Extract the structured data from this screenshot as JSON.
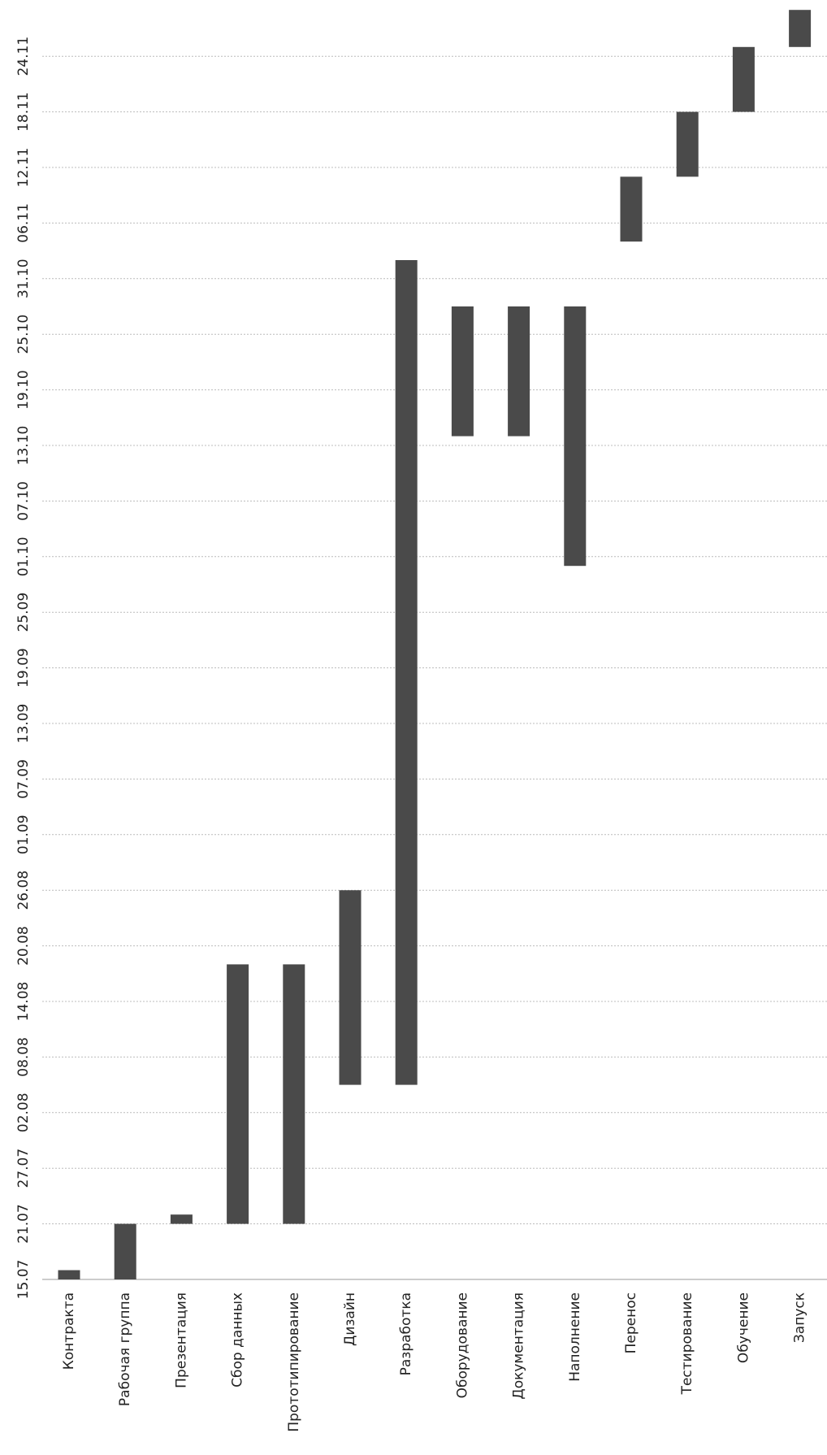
{
  "chart_data": {
    "type": "bar",
    "orientation": "gantt",
    "title": "",
    "xlabel": "",
    "ylabel": "",
    "grid": true,
    "date_ticks": [
      "15.07",
      "21.07",
      "27.07",
      "02.08",
      "08.08",
      "14.08",
      "20.08",
      "26.08",
      "01.09",
      "07.09",
      "13.09",
      "19.09",
      "25.09",
      "01.10",
      "07.10",
      "13.10",
      "19.10",
      "25.10",
      "31.10",
      "06.11",
      "12.11",
      "18.11",
      "24.11"
    ],
    "date_range": [
      "15.07",
      "28.11"
    ],
    "series": [
      {
        "task": "Контракта",
        "start": "15.07",
        "end": "16.07"
      },
      {
        "task": "Рабочая группа",
        "start": "15.07",
        "end": "21.07"
      },
      {
        "task": "Презентация",
        "start": "21.07",
        "end": "22.07"
      },
      {
        "task": "Сбор данных",
        "start": "21.07",
        "end": "18.08"
      },
      {
        "task": "Прототипирование",
        "start": "21.07",
        "end": "18.08"
      },
      {
        "task": "Дизайн",
        "start": "05.08",
        "end": "26.08"
      },
      {
        "task": "Разработка",
        "start": "05.08",
        "end": "02.11"
      },
      {
        "task": "Оборудование",
        "start": "14.10",
        "end": "28.10"
      },
      {
        "task": "Документация",
        "start": "14.10",
        "end": "28.10"
      },
      {
        "task": "Наполнение",
        "start": "30.09",
        "end": "28.10"
      },
      {
        "task": "Перенос",
        "start": "04.11",
        "end": "11.11"
      },
      {
        "task": "Тестирование",
        "start": "11.11",
        "end": "18.11"
      },
      {
        "task": "Обучение",
        "start": "18.11",
        "end": "25.11"
      },
      {
        "task": "Запуск",
        "start": "25.11",
        "end": "29.11"
      }
    ]
  }
}
